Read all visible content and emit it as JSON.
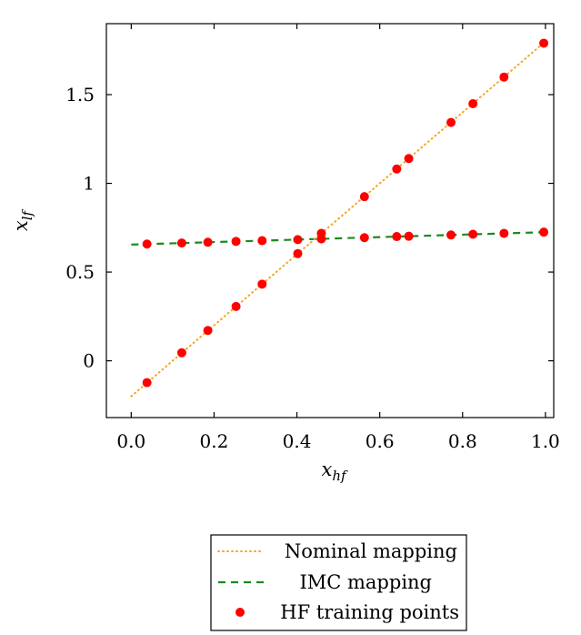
{
  "chart_data": {
    "type": "scatter",
    "title": "",
    "xlabel": "x_hf",
    "ylabel": "x_lf",
    "xlabel_main": "x",
    "xlabel_sub": "hf",
    "ylabel_main": "x",
    "ylabel_sub": "lf",
    "xlim": [
      -0.06,
      1.02
    ],
    "ylim": [
      -0.32,
      1.9
    ],
    "xticks": [
      0.0,
      0.2,
      0.4,
      0.6,
      0.8,
      1.0
    ],
    "xtick_labels": [
      "0.0",
      "0.2",
      "0.4",
      "0.6",
      "0.8",
      "1.0"
    ],
    "yticks": [
      0,
      0.5,
      1,
      1.5
    ],
    "ytick_labels": [
      "0",
      "0.5",
      "1",
      "1.5"
    ],
    "grid": false,
    "legend_position": "bottom-center",
    "series": [
      {
        "name": "Nominal mapping",
        "style": "dotted-line",
        "color": "#f5a623",
        "x": [
          0.0,
          1.0
        ],
        "y": [
          -0.2,
          1.8
        ]
      },
      {
        "name": "IMC mapping",
        "style": "dashed-line",
        "color": "#1a8a1a",
        "x": [
          0.0,
          1.0
        ],
        "y": [
          0.655,
          0.725
        ]
      },
      {
        "name": "HF training points",
        "style": "markers",
        "color": "#ff0000",
        "x": [
          0.038,
          0.122,
          0.185,
          0.253,
          0.316,
          0.402,
          0.459,
          0.563,
          0.641,
          0.67,
          0.772,
          0.825,
          0.9,
          0.996,
          0.038,
          0.122,
          0.185,
          0.253,
          0.316,
          0.402,
          0.459,
          0.563,
          0.641,
          0.67,
          0.772,
          0.825,
          0.9,
          0.996
        ],
        "y": [
          -0.123,
          0.045,
          0.171,
          0.306,
          0.432,
          0.604,
          0.718,
          0.925,
          1.081,
          1.14,
          1.343,
          1.449,
          1.599,
          1.79,
          0.658,
          0.664,
          0.668,
          0.673,
          0.677,
          0.683,
          0.687,
          0.694,
          0.7,
          0.702,
          0.709,
          0.713,
          0.718,
          0.725
        ]
      }
    ]
  }
}
